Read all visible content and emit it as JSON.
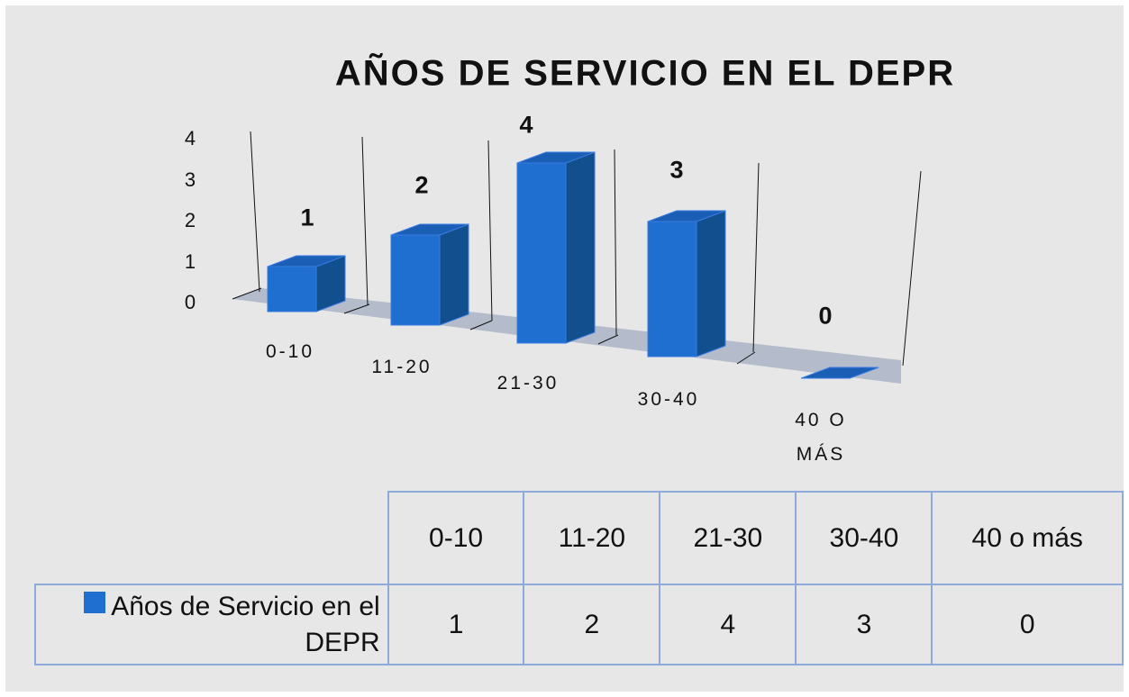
{
  "chart_data": {
    "type": "bar3d",
    "title": "AÑOS DE SERVICIO EN EL DEPR",
    "categories": [
      "0-10",
      "11-20",
      "21-30",
      "30-40",
      "40 O MÁS"
    ],
    "series": [
      {
        "name": "Años de Servicio en el DEPR",
        "color": "#1f6fd1",
        "values": [
          1,
          2,
          4,
          3,
          0
        ]
      }
    ],
    "ylim": [
      0,
      4
    ],
    "yticks": [
      0,
      1,
      2,
      3,
      4
    ],
    "table_header": [
      "0-10",
      "11-20",
      "21-30",
      "30-40",
      "40 o más"
    ]
  }
}
